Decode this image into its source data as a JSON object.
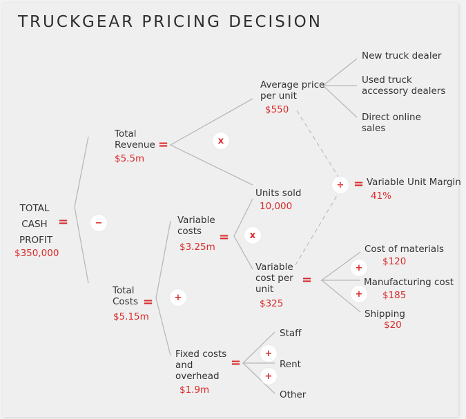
{
  "title": "TRUCKGEAR PRICING DECISION",
  "root": {
    "label": "TOTAL\nCASH\nPROFIT",
    "value": "$350,000"
  },
  "revenue": {
    "label": "Total\nRevenue",
    "value": "$5.5m"
  },
  "costs": {
    "label": "Total\nCosts",
    "value": "$5.15m"
  },
  "avg_price": {
    "label": "Average price\nper unit",
    "value": "$550"
  },
  "units_sold": {
    "label": "Units sold",
    "value": "10,000"
  },
  "variable_costs": {
    "label": "Variable\ncosts",
    "value": "$3.25m"
  },
  "variable_cost_unit": {
    "label": "Variable\ncost per\nunit",
    "value": "$325"
  },
  "fixed_costs": {
    "label": "Fixed costs\nand\noverhead",
    "value": "$1.9m"
  },
  "margin": {
    "label": "Variable Unit Margin",
    "value": "41%"
  },
  "channels": [
    "New truck dealer",
    "Used truck\naccessory dealers",
    "Direct online\nsales"
  ],
  "cost_items": [
    {
      "label": "Cost of materials",
      "value": "$120"
    },
    {
      "label": "Manufacturing cost",
      "value": "$185"
    },
    {
      "label": "Shipping",
      "value": "$20"
    }
  ],
  "fixed_items": [
    "Staff",
    "Rent",
    "Other"
  ],
  "operators": {
    "equals": "=",
    "minus": "−",
    "times": "x",
    "plus": "+",
    "divide": "÷"
  },
  "colors": {
    "accent": "#d92b2b",
    "text": "#333333",
    "line": "#b5b5b5",
    "paper": "#efefef"
  }
}
